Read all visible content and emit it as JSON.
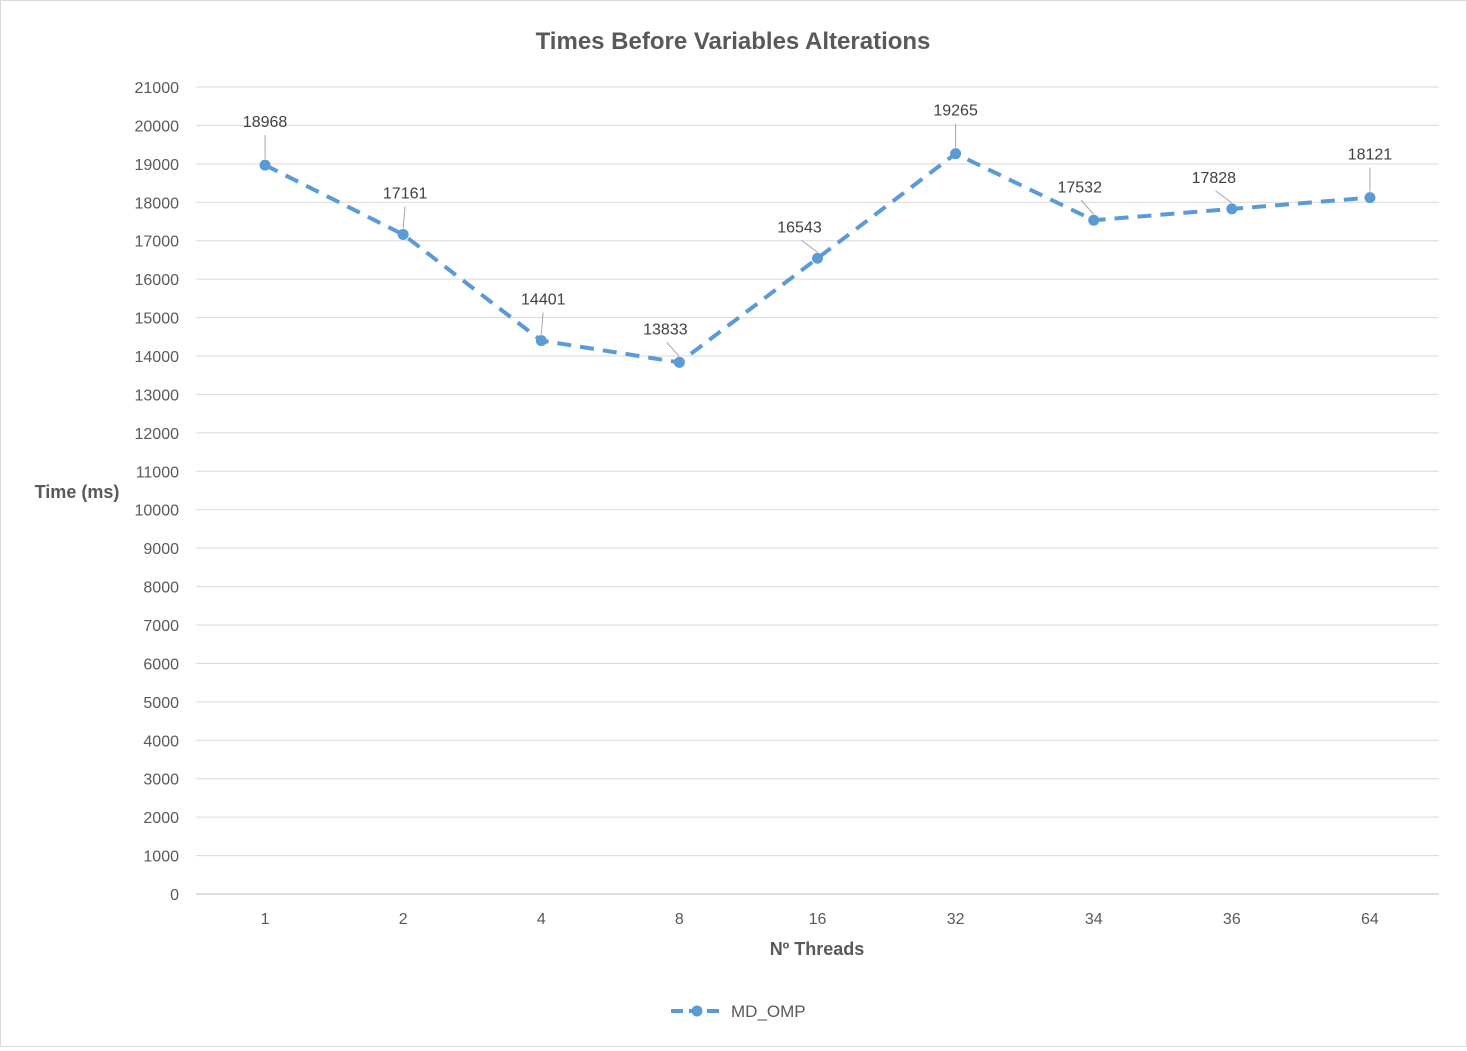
{
  "chart_data": {
    "type": "line",
    "title": "Times Before Variables Alterations",
    "xlabel": "Nº Threads",
    "ylabel": "Time (ms)",
    "categories": [
      "1",
      "2",
      "4",
      "8",
      "16",
      "32",
      "34",
      "36",
      "64"
    ],
    "series": [
      {
        "name": "MD_OMP",
        "values": [
          18968,
          17161,
          14401,
          13833,
          16543,
          19265,
          17532,
          17828,
          18121
        ],
        "color": "#5b9bd5",
        "line_style": "dashed",
        "marker": "circle"
      }
    ],
    "ylim": [
      0,
      21000
    ],
    "ytick_step": 1000,
    "yticks": [
      0,
      1000,
      2000,
      3000,
      4000,
      5000,
      6000,
      7000,
      8000,
      9000,
      10000,
      11000,
      12000,
      13000,
      14000,
      15000,
      16000,
      17000,
      18000,
      19000,
      20000,
      21000
    ],
    "grid": true,
    "data_labels": true,
    "legend_position": "bottom"
  }
}
